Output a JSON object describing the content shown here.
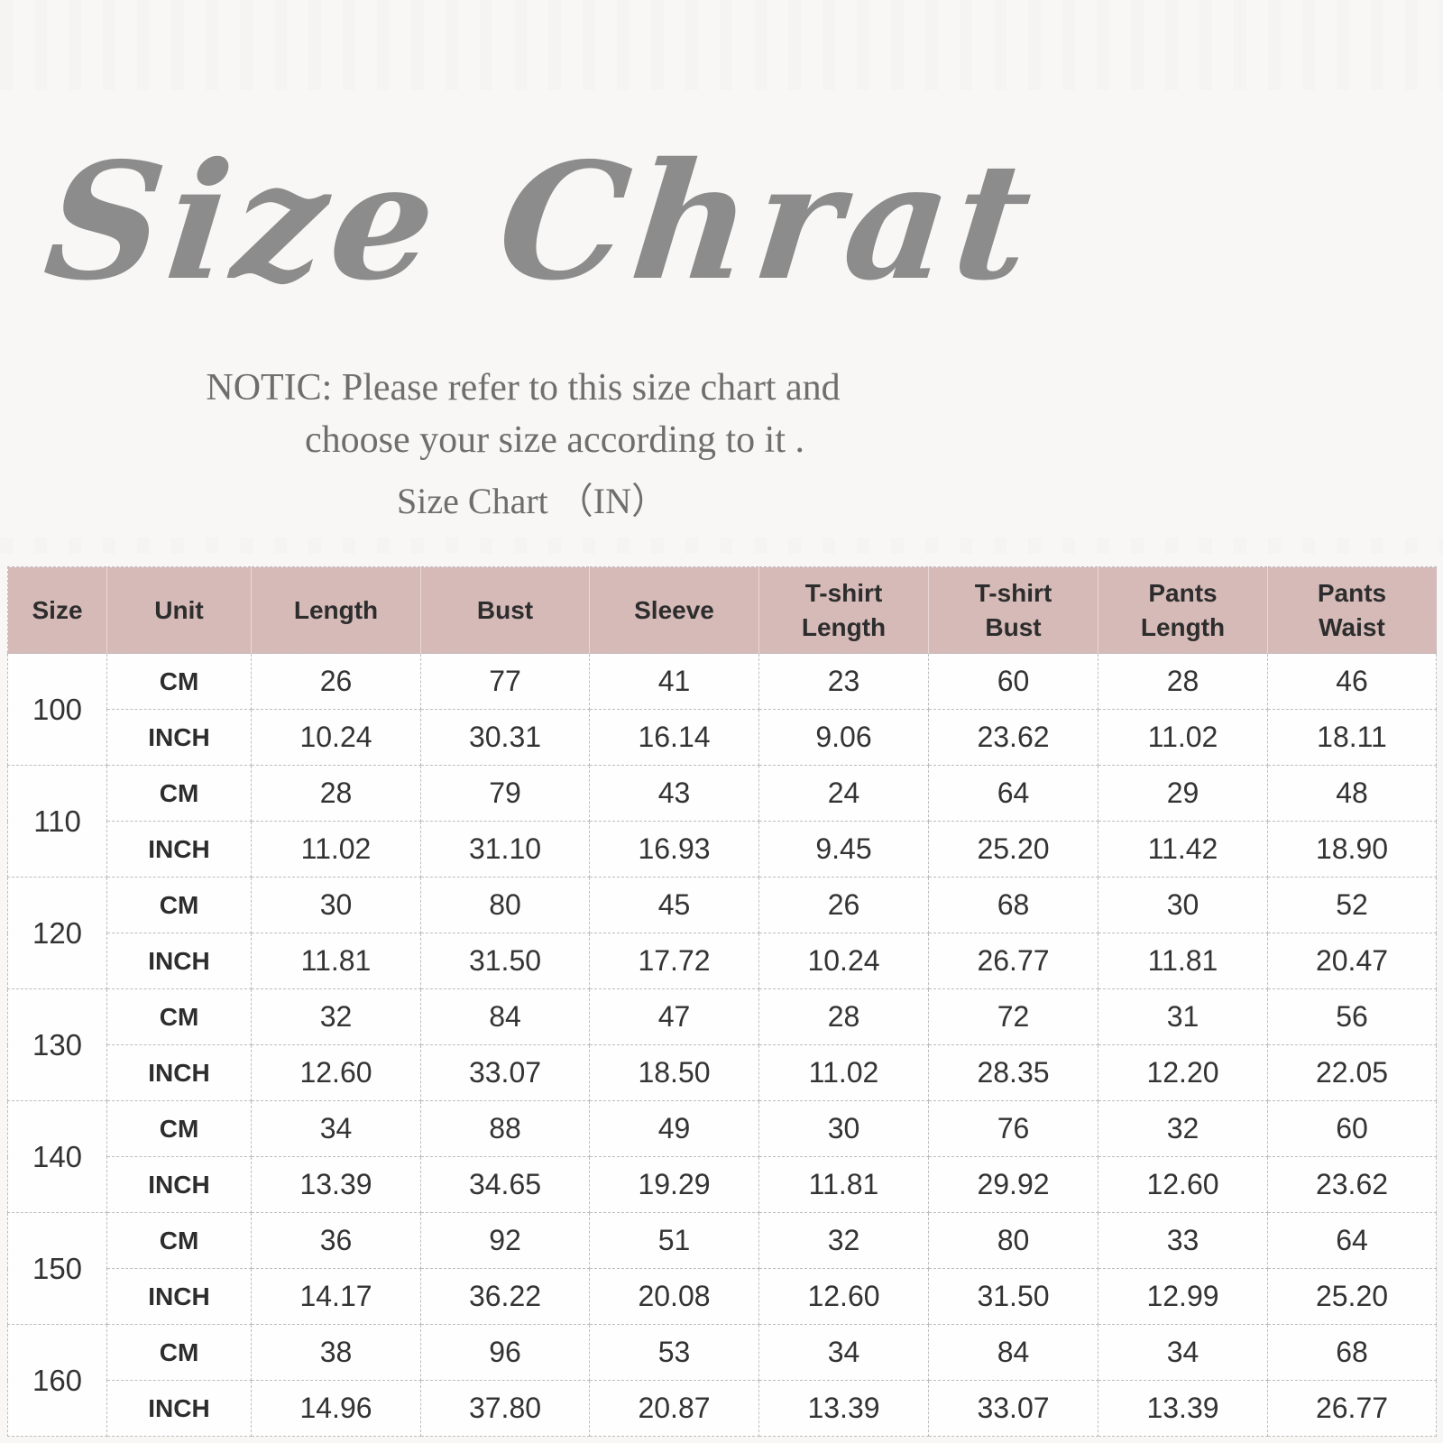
{
  "header": {
    "title": "Size Chrat",
    "notice_line1": "NOTIC: Please refer to this size chart and",
    "notice_line2": "choose your size according to it .",
    "subtitle": "Size Chart （IN）"
  },
  "colors": {
    "page_bg": "#f8f7f6",
    "header_band_bg": "#d5bab8",
    "title_gray": "#8c8c8c",
    "notice_gray": "#6e6e6e",
    "table_text": "#333333",
    "grid_border": "#bdbdbd"
  },
  "chart_data": {
    "type": "table",
    "title": "Size Chrat",
    "subtitle": "Size Chart （IN）",
    "columns": [
      "Size",
      "Unit",
      "Length",
      "Bust",
      "Sleeve",
      "T-shirt\nLength",
      "T-shirt\nBust",
      "Pants\nLength",
      "Pants\nWaist"
    ],
    "unit_labels": [
      "CM",
      "INCH"
    ],
    "rows": [
      {
        "size": "100",
        "cm": [
          "26",
          "77",
          "41",
          "23",
          "60",
          "28",
          "46"
        ],
        "inch": [
          "10.24",
          "30.31",
          "16.14",
          "9.06",
          "23.62",
          "11.02",
          "18.11"
        ]
      },
      {
        "size": "110",
        "cm": [
          "28",
          "79",
          "43",
          "24",
          "64",
          "29",
          "48"
        ],
        "inch": [
          "11.02",
          "31.10",
          "16.93",
          "9.45",
          "25.20",
          "11.42",
          "18.90"
        ]
      },
      {
        "size": "120",
        "cm": [
          "30",
          "80",
          "45",
          "26",
          "68",
          "30",
          "52"
        ],
        "inch": [
          "11.81",
          "31.50",
          "17.72",
          "10.24",
          "26.77",
          "11.81",
          "20.47"
        ]
      },
      {
        "size": "130",
        "cm": [
          "32",
          "84",
          "47",
          "28",
          "72",
          "31",
          "56"
        ],
        "inch": [
          "12.60",
          "33.07",
          "18.50",
          "11.02",
          "28.35",
          "12.20",
          "22.05"
        ]
      },
      {
        "size": "140",
        "cm": [
          "34",
          "88",
          "49",
          "30",
          "76",
          "32",
          "60"
        ],
        "inch": [
          "13.39",
          "34.65",
          "19.29",
          "11.81",
          "29.92",
          "12.60",
          "23.62"
        ]
      },
      {
        "size": "150",
        "cm": [
          "36",
          "92",
          "51",
          "32",
          "80",
          "33",
          "64"
        ],
        "inch": [
          "14.17",
          "36.22",
          "20.08",
          "12.60",
          "31.50",
          "12.99",
          "25.20"
        ]
      },
      {
        "size": "160",
        "cm": [
          "38",
          "96",
          "53",
          "34",
          "84",
          "34",
          "68"
        ],
        "inch": [
          "14.96",
          "37.80",
          "20.87",
          "13.39",
          "33.07",
          "13.39",
          "26.77"
        ]
      }
    ]
  }
}
